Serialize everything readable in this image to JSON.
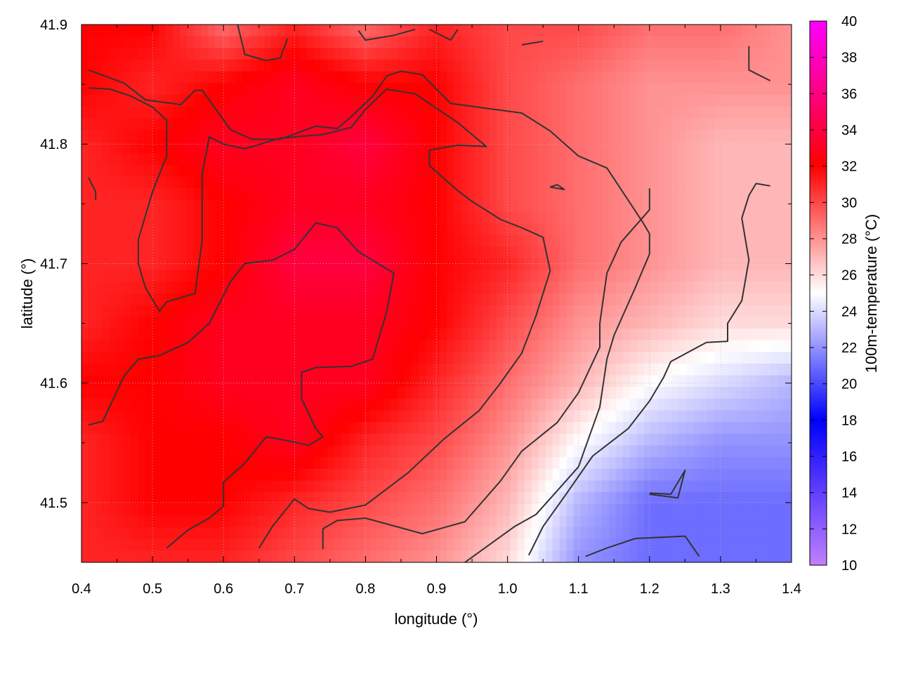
{
  "chart_data": {
    "type": "heatmap",
    "title": "",
    "xlabel": "longitude (°)",
    "ylabel": "latitude (°)",
    "colorbar_label": "100m-temperature (°C)",
    "xlim": [
      0.4,
      1.4
    ],
    "ylim": [
      41.45,
      41.9
    ],
    "x_ticks": [
      "0.4",
      "0.5",
      "0.6",
      "0.7",
      "0.8",
      "0.9",
      "1.0",
      "1.1",
      "1.2",
      "1.3",
      "1.4"
    ],
    "y_ticks": [
      "41.5",
      "41.6",
      "41.7",
      "41.8",
      "41.9"
    ],
    "colorbar_range": [
      10,
      40
    ],
    "colorbar_ticks": [
      "10",
      "12",
      "14",
      "16",
      "18",
      "20",
      "22",
      "24",
      "26",
      "28",
      "30",
      "32",
      "34",
      "36",
      "38",
      "40"
    ],
    "colormap": [
      {
        "value": 10,
        "color": "#c080ff"
      },
      {
        "value": 18,
        "color": "#0000ff"
      },
      {
        "value": 25,
        "color": "#ffffff"
      },
      {
        "value": 32,
        "color": "#ff0000"
      },
      {
        "value": 40,
        "color": "#ff00ff"
      }
    ],
    "grid": true,
    "field_samples_lon": [
      0.4,
      0.5,
      0.6,
      0.7,
      0.8,
      0.9,
      1.0,
      1.1,
      1.2,
      1.3,
      1.4
    ],
    "field_samples_lat": [
      41.9,
      41.85,
      41.8,
      41.75,
      41.7,
      41.65,
      41.6,
      41.55,
      41.5,
      41.45
    ],
    "temperature_grid": [
      [
        32,
        32,
        29,
        31,
        29,
        31,
        30,
        30,
        29,
        29,
        28
      ],
      [
        32,
        31,
        32,
        33,
        32,
        32,
        30,
        29,
        28,
        28,
        28
      ],
      [
        31,
        32,
        33,
        33,
        34,
        32,
        30,
        29,
        28,
        27,
        27
      ],
      [
        31,
        31,
        32,
        33,
        33,
        32,
        30,
        29,
        28,
        27,
        27
      ],
      [
        31,
        31,
        32,
        34,
        34,
        32,
        31,
        29,
        28,
        27,
        27
      ],
      [
        31,
        32,
        33,
        33,
        33,
        32,
        30,
        28,
        27,
        26,
        26
      ],
      [
        32,
        32,
        33,
        33,
        33,
        31,
        29,
        27,
        25,
        24,
        23
      ],
      [
        31,
        32,
        32,
        33,
        31,
        30,
        28,
        25,
        23,
        22,
        22
      ],
      [
        31,
        32,
        32,
        31,
        30,
        29,
        27,
        23,
        21,
        21,
        21
      ],
      [
        31,
        31,
        31,
        30,
        29,
        28,
        26,
        22,
        21,
        21,
        21
      ]
    ],
    "contour_lines": [
      [
        [
          0.41,
          41.862
        ],
        [
          0.46,
          41.851
        ],
        [
          0.49,
          41.837
        ],
        [
          0.54,
          41.833
        ],
        [
          0.56,
          41.845
        ],
        [
          0.57,
          41.845
        ],
        [
          0.61,
          41.812
        ],
        [
          0.64,
          41.804
        ],
        [
          0.68,
          41.804
        ],
        [
          0.73,
          41.815
        ],
        [
          0.76,
          41.813
        ],
        [
          0.78,
          41.823
        ],
        [
          0.81,
          41.84
        ],
        [
          0.83,
          41.857
        ],
        [
          0.85,
          41.861
        ],
        [
          0.88,
          41.858
        ],
        [
          0.92,
          41.834
        ],
        [
          0.97,
          41.83
        ],
        [
          1.02,
          41.826
        ],
        [
          1.06,
          41.811
        ],
        [
          1.1,
          41.79
        ],
        [
          1.14,
          41.78
        ],
        [
          1.16,
          41.762
        ],
        [
          1.19,
          41.735
        ],
        [
          1.2,
          41.725
        ],
        [
          1.2,
          41.708
        ],
        [
          1.18,
          41.68
        ],
        [
          1.15,
          41.64
        ],
        [
          1.14,
          41.62
        ],
        [
          1.13,
          41.58
        ],
        [
          1.1,
          41.53
        ],
        [
          1.07,
          41.51
        ],
        [
          1.04,
          41.49
        ],
        [
          1.01,
          41.48
        ],
        [
          0.94,
          41.45
        ]
      ],
      [
        [
          0.41,
          41.847
        ],
        [
          0.44,
          41.846
        ],
        [
          0.47,
          41.84
        ],
        [
          0.5,
          41.831
        ],
        [
          0.52,
          41.82
        ],
        [
          0.52,
          41.79
        ],
        [
          0.5,
          41.76
        ],
        [
          0.48,
          41.72
        ],
        [
          0.48,
          41.7
        ],
        [
          0.49,
          41.68
        ],
        [
          0.51,
          41.66
        ],
        [
          0.52,
          41.668
        ],
        [
          0.56,
          41.675
        ],
        [
          0.57,
          41.72
        ],
        [
          0.57,
          41.775
        ],
        [
          0.58,
          41.806
        ],
        [
          0.6,
          41.8
        ],
        [
          0.63,
          41.796
        ],
        [
          0.68,
          41.805
        ],
        [
          0.74,
          41.808
        ],
        [
          0.78,
          41.814
        ],
        [
          0.8,
          41.829
        ],
        [
          0.83,
          41.846
        ],
        [
          0.87,
          41.842
        ],
        [
          0.93,
          41.818
        ],
        [
          0.97,
          41.798
        ],
        [
          0.93,
          41.799
        ],
        [
          0.89,
          41.795
        ],
        [
          0.89,
          41.782
        ],
        [
          0.93,
          41.761
        ],
        [
          0.95,
          41.752
        ],
        [
          0.99,
          41.737
        ],
        [
          1.02,
          41.73
        ],
        [
          1.05,
          41.722
        ],
        [
          1.06,
          41.694
        ],
        [
          1.04,
          41.656
        ],
        [
          1.02,
          41.625
        ],
        [
          0.99,
          41.6
        ],
        [
          0.96,
          41.577
        ],
        [
          0.91,
          41.553
        ],
        [
          0.86,
          41.525
        ],
        [
          0.8,
          41.498
        ],
        [
          0.75,
          41.492
        ],
        [
          0.72,
          41.495
        ],
        [
          0.7,
          41.503
        ],
        [
          0.67,
          41.481
        ],
        [
          0.65,
          41.462
        ]
      ],
      [
        [
          0.41,
          41.565
        ],
        [
          0.43,
          41.568
        ],
        [
          0.46,
          41.606
        ],
        [
          0.48,
          41.62
        ],
        [
          0.51,
          41.623
        ],
        [
          0.55,
          41.634
        ],
        [
          0.58,
          41.65
        ],
        [
          0.61,
          41.685
        ],
        [
          0.63,
          41.7
        ],
        [
          0.67,
          41.703
        ],
        [
          0.7,
          41.712
        ],
        [
          0.73,
          41.734
        ],
        [
          0.76,
          41.73
        ],
        [
          0.79,
          41.71
        ],
        [
          0.84,
          41.692
        ],
        [
          0.83,
          41.66
        ],
        [
          0.81,
          41.62
        ],
        [
          0.78,
          41.614
        ],
        [
          0.73,
          41.613
        ],
        [
          0.71,
          41.609
        ],
        [
          0.71,
          41.587
        ],
        [
          0.73,
          41.562
        ],
        [
          0.74,
          41.555
        ],
        [
          0.72,
          41.548
        ],
        [
          0.68,
          41.553
        ],
        [
          0.66,
          41.555
        ],
        [
          0.63,
          41.533
        ],
        [
          0.6,
          41.517
        ],
        [
          0.6,
          41.497
        ],
        [
          0.58,
          41.487
        ],
        [
          0.55,
          41.477
        ],
        [
          0.52,
          41.462
        ]
      ],
      [
        [
          0.74,
          41.461
        ],
        [
          0.74,
          41.478
        ],
        [
          0.76,
          41.485
        ],
        [
          0.8,
          41.487
        ],
        [
          0.88,
          41.474
        ],
        [
          0.94,
          41.484
        ],
        [
          0.99,
          41.518
        ],
        [
          1.02,
          41.543
        ],
        [
          1.07,
          41.567
        ],
        [
          1.1,
          41.592
        ],
        [
          1.13,
          41.63
        ],
        [
          1.13,
          41.65
        ],
        [
          1.14,
          41.692
        ],
        [
          1.16,
          41.718
        ],
        [
          1.2,
          41.745
        ],
        [
          1.2,
          41.763
        ]
      ],
      [
        [
          1.11,
          41.455
        ],
        [
          1.14,
          41.462
        ],
        [
          1.18,
          41.47
        ],
        [
          1.25,
          41.472
        ],
        [
          1.27,
          41.455
        ]
      ],
      [
        [
          1.2,
          41.507
        ],
        [
          1.24,
          41.504
        ],
        [
          1.25,
          41.527
        ],
        [
          1.23,
          41.507
        ],
        [
          1.2,
          41.508
        ]
      ],
      [
        [
          1.37,
          41.765
        ],
        [
          1.35,
          41.767
        ],
        [
          1.34,
          41.757
        ],
        [
          1.33,
          41.738
        ],
        [
          1.34,
          41.703
        ],
        [
          1.33,
          41.669
        ],
        [
          1.31,
          41.65
        ],
        [
          1.31,
          41.635
        ],
        [
          1.28,
          41.634
        ],
        [
          1.23,
          41.618
        ],
        [
          1.22,
          41.605
        ],
        [
          1.2,
          41.585
        ],
        [
          1.17,
          41.562
        ],
        [
          1.12,
          41.539
        ],
        [
          1.08,
          41.505
        ],
        [
          1.05,
          41.48
        ],
        [
          1.03,
          41.456
        ]
      ],
      [
        [
          0.62,
          41.9
        ],
        [
          0.63,
          41.875
        ],
        [
          0.66,
          41.87
        ],
        [
          0.68,
          41.872
        ],
        [
          0.69,
          41.888
        ]
      ],
      [
        [
          0.79,
          41.895
        ],
        [
          0.8,
          41.887
        ],
        [
          0.84,
          41.891
        ],
        [
          0.87,
          41.896
        ]
      ],
      [
        [
          0.89,
          41.896
        ],
        [
          0.92,
          41.887
        ],
        [
          0.93,
          41.896
        ]
      ],
      [
        [
          1.02,
          41.883
        ],
        [
          1.05,
          41.886
        ]
      ],
      [
        [
          1.34,
          41.882
        ],
        [
          1.34,
          41.862
        ],
        [
          1.37,
          41.853
        ]
      ],
      [
        [
          1.06,
          41.764
        ],
        [
          1.08,
          41.762
        ],
        [
          1.07,
          41.766
        ],
        [
          1.06,
          41.764
        ]
      ],
      [
        [
          0.41,
          41.772
        ],
        [
          0.42,
          41.76
        ],
        [
          0.42,
          41.753
        ]
      ]
    ]
  }
}
